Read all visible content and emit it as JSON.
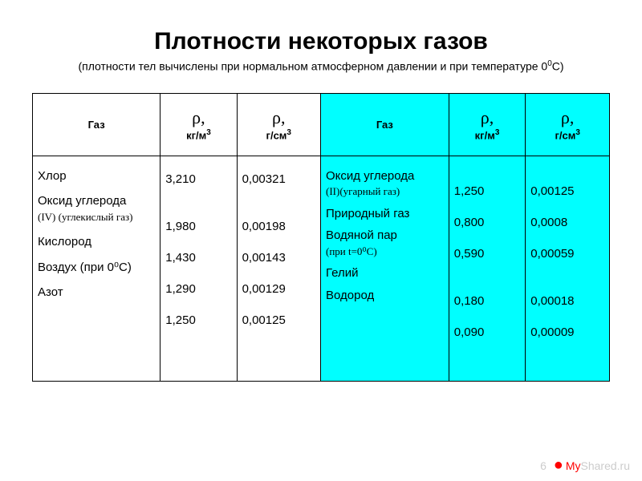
{
  "title": "Плотности некоторых газов",
  "subtitle_prefix": "(плотности тел вычислены при нормальном атмосферном давлении и при температуре 0",
  "subtitle_suffix": "С)",
  "headers": {
    "gas": "Газ",
    "rho": "ρ,",
    "kg_unit": "кг/м",
    "g_unit": "г/см",
    "exp": "3",
    "sup_zero": "0"
  },
  "left_table": {
    "gases": [
      {
        "name": "Хлор",
        "note": ""
      },
      {
        "name": "Оксид углерода",
        "note": "(IV) (углекислый газ)"
      },
      {
        "name": "Кислород",
        "note": ""
      },
      {
        "name": "Воздух (при 0⁰С)",
        "note": ""
      },
      {
        "name": "Азот",
        "note": ""
      }
    ],
    "kg_values": [
      "3,210",
      "1,980",
      "1,430",
      "1,290",
      "1,250"
    ],
    "g_values": [
      "0,00321",
      "0,00198",
      "0,00143",
      "0,00129",
      "0,00125"
    ]
  },
  "right_table": {
    "gases": [
      {
        "name": "Оксид углерода",
        "note": "(II)(угарный газ)"
      },
      {
        "name": "Природный газ",
        "note": ""
      },
      {
        "name": "Водяной пар",
        "note": "(при t=0⁰С)"
      },
      {
        "name": "Гелий",
        "note": ""
      },
      {
        "name": "Водород",
        "note": ""
      }
    ],
    "kg_values": [
      "1,250",
      "0,800",
      "0,590",
      "0,180",
      "0,090"
    ],
    "g_values": [
      "0,00125",
      "0,0008",
      "0,00059",
      "0,00018",
      "0,00009"
    ]
  },
  "watermark": {
    "number": "6",
    "my": "My",
    "shared": "Shared.ru"
  },
  "colors": {
    "right_bg": "#00ffff",
    "left_bg": "#ffffff",
    "border": "#000000",
    "watermark_gray": "#cccccc",
    "watermark_red": "#ff0000"
  }
}
